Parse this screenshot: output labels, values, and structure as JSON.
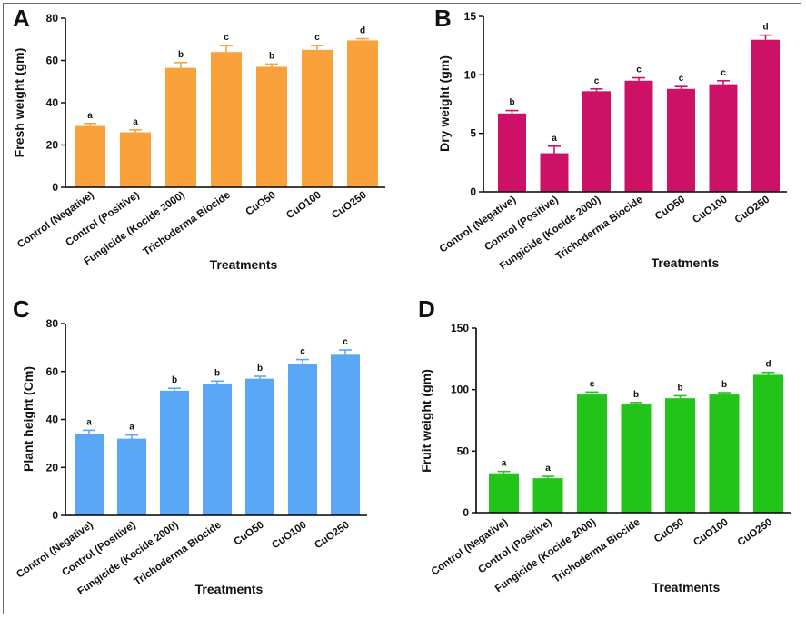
{
  "figure": {
    "panels": [
      "A",
      "B",
      "C",
      "D"
    ]
  },
  "chart_data": [
    {
      "type": "bar",
      "panel": "A",
      "title": "",
      "xlabel": "Treatments",
      "ylabel": "Fresh weight (gm)",
      "ylim": [
        0,
        80
      ],
      "yticks": [
        0,
        20,
        40,
        60,
        80
      ],
      "color": "#F9A23B",
      "categories": [
        "Control (Negative)",
        "Control (Positive)",
        "Fungicide  (Kocide 2000)",
        "Trichoderma Biocide",
        "CuO50",
        "CuO100",
        "CuO250"
      ],
      "values": [
        29,
        26,
        56.5,
        64,
        57,
        65,
        69.5
      ],
      "errors": [
        1.2,
        1.2,
        2.5,
        3,
        1.3,
        2,
        0.8
      ],
      "letters": [
        "a",
        "a",
        "b",
        "c",
        "b",
        "c",
        "d"
      ]
    },
    {
      "type": "bar",
      "panel": "B",
      "title": "",
      "xlabel": "Treatments",
      "ylabel": "Dry weight (gm)",
      "ylim": [
        0,
        15
      ],
      "yticks": [
        0,
        5,
        10,
        15
      ],
      "color": "#CC1166",
      "categories": [
        "Control (Negative)",
        "Control (Positive)",
        "Fungicide  (Kocide 2000)",
        "Trichoderma Biocide",
        "CuO50",
        "CuO100",
        "CuO250"
      ],
      "values": [
        6.7,
        3.3,
        8.6,
        9.5,
        8.8,
        9.2,
        13
      ],
      "errors": [
        0.25,
        0.6,
        0.2,
        0.25,
        0.2,
        0.3,
        0.4
      ],
      "letters": [
        "b",
        "a",
        "c",
        "c",
        "c",
        "c",
        "d"
      ]
    },
    {
      "type": "bar",
      "panel": "C",
      "title": "",
      "xlabel": "Treatments",
      "ylabel": "Plant height (Cm)",
      "ylim": [
        0,
        80
      ],
      "yticks": [
        0,
        20,
        40,
        60,
        80
      ],
      "color": "#5AA8F5",
      "categories": [
        "Control (Negative)",
        "Control (Positive)",
        "Fungicide  (Kocide 2000)",
        "Trichoderma Biocide",
        "CuO50",
        "CuO100",
        "CuO250"
      ],
      "values": [
        34,
        32,
        52,
        55,
        57,
        63,
        67
      ],
      "errors": [
        1.5,
        1.5,
        1,
        1,
        1,
        2,
        2
      ],
      "letters": [
        "a",
        "a",
        "b",
        "b",
        "b",
        "c",
        "c"
      ]
    },
    {
      "type": "bar",
      "panel": "D",
      "title": "",
      "xlabel": "Treatments",
      "ylabel": "Fruit weight (gm)",
      "ylim": [
        0,
        150
      ],
      "yticks": [
        0,
        50,
        100,
        150
      ],
      "color": "#22C41A",
      "categories": [
        "Control (Negative)",
        "Control (Positive)",
        "Fungicide  (Kocide 2000)",
        "Trichoderma Biocide",
        "CuO50",
        "CuO100",
        "CuO250"
      ],
      "values": [
        32,
        28,
        96,
        88,
        93,
        96,
        112
      ],
      "errors": [
        1.5,
        1.5,
        2,
        1.5,
        2,
        1.5,
        2
      ],
      "letters": [
        "a",
        "a",
        "c",
        "b",
        "b",
        "b",
        "d"
      ]
    }
  ]
}
